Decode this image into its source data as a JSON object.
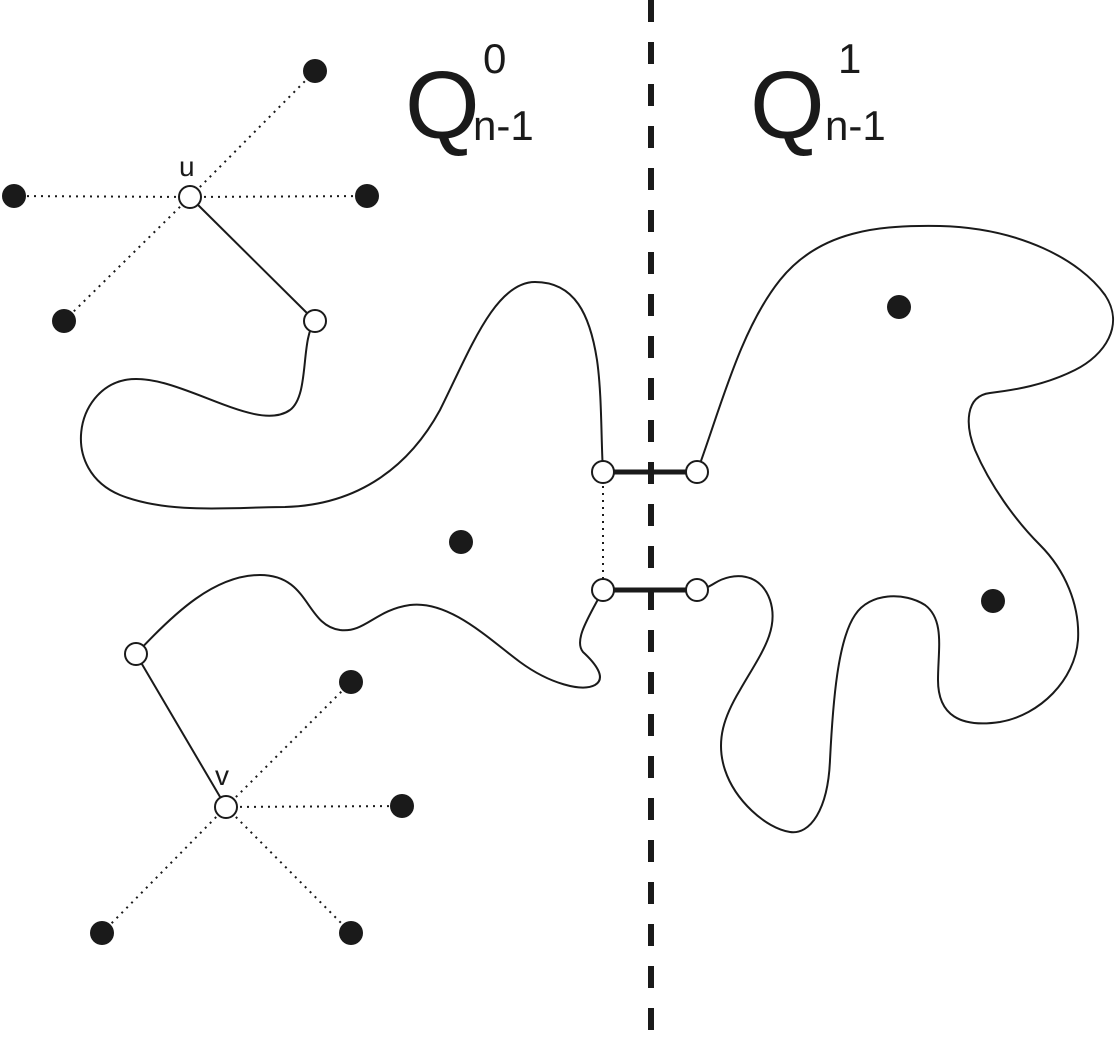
{
  "labels": {
    "left_part": {
      "letter": "Q",
      "superscript": "0",
      "subscript": "n-1"
    },
    "right_part": {
      "letter": "Q",
      "superscript": "1",
      "subscript": "n-1"
    },
    "vertex_u": "u",
    "vertex_v": "v"
  },
  "colors": {
    "ink": "#1a1a1a",
    "background": "#ffffff",
    "open_vertex_fill": "#ffffff"
  }
}
